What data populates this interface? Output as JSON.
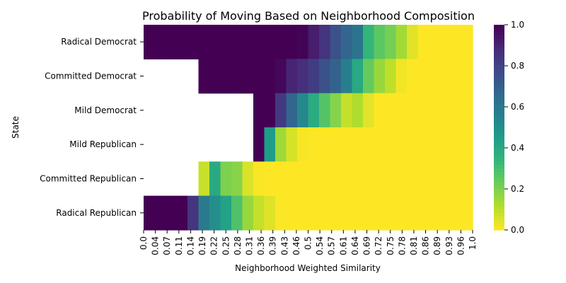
{
  "chart_data": {
    "type": "heatmap",
    "title": "Probability of Moving Based on Neighborhood Composition",
    "xlabel": "Neighborhood Weighted Similarity",
    "ylabel": "State",
    "rows": [
      "Radical Democrat",
      "Committed Democrat",
      "Mild Democrat",
      "Mild Republican",
      "Committed Republican",
      "Radical Republican"
    ],
    "x_ticks": [
      "0.0",
      "0.04",
      "0.07",
      "0.11",
      "0.14",
      "0.19",
      "0.22",
      "0.25",
      "0.28",
      "0.31",
      "0.36",
      "0.39",
      "0.43",
      "0.46",
      "0.5",
      "0.54",
      "0.57",
      "0.61",
      "0.64",
      "0.69",
      "0.72",
      "0.75",
      "0.78",
      "0.81",
      "0.86",
      "0.89",
      "0.93",
      "0.96",
      "1.0"
    ],
    "x_range": [
      0.0,
      1.0
    ],
    "colorbar": {
      "colormap": "viridis",
      "range": [
        0.0,
        1.0
      ],
      "ticks": [
        "0.0",
        "0.2",
        "0.4",
        "0.6",
        "0.8",
        "1.0"
      ],
      "stops": [
        "#fde725",
        "#b5de2b",
        "#6ece58",
        "#35b779",
        "#1f9e89",
        "#26828e",
        "#31688e",
        "#3e4989",
        "#482878",
        "#440154"
      ]
    },
    "series": [
      {
        "name": "Radical Democrat",
        "valid_from": 0.0,
        "profile": [
          [
            0.0,
            0.85
          ],
          [
            0.01,
            1.0
          ],
          [
            0.48,
            1.0
          ],
          [
            0.55,
            0.85
          ],
          [
            0.6,
            0.7
          ],
          [
            0.66,
            0.6
          ],
          [
            0.68,
            0.35
          ],
          [
            0.72,
            0.25
          ],
          [
            0.76,
            0.2
          ],
          [
            0.8,
            0.1
          ],
          [
            0.83,
            0.0
          ],
          [
            1.0,
            0.0
          ]
        ]
      },
      {
        "name": "Committed Democrat",
        "valid_from": 0.17,
        "profile": [
          [
            0.17,
            1.0
          ],
          [
            0.41,
            1.0
          ],
          [
            0.45,
            0.9
          ],
          [
            0.5,
            0.85
          ],
          [
            0.55,
            0.75
          ],
          [
            0.6,
            0.65
          ],
          [
            0.65,
            0.4
          ],
          [
            0.68,
            0.25
          ],
          [
            0.72,
            0.15
          ],
          [
            0.76,
            0.08
          ],
          [
            0.79,
            0.0
          ],
          [
            1.0,
            0.0
          ]
        ]
      },
      {
        "name": "Mild Democrat",
        "valid_from": 0.34,
        "profile": [
          [
            0.34,
            1.0
          ],
          [
            0.41,
            1.0
          ],
          [
            0.42,
            0.75
          ],
          [
            0.46,
            0.65
          ],
          [
            0.5,
            0.45
          ],
          [
            0.54,
            0.3
          ],
          [
            0.58,
            0.2
          ],
          [
            0.61,
            0.08
          ],
          [
            0.65,
            0.12
          ],
          [
            0.68,
            0.05
          ],
          [
            0.7,
            0.0
          ],
          [
            1.0,
            0.0
          ]
        ]
      },
      {
        "name": "Mild Republican",
        "valid_from": 0.34,
        "profile": [
          [
            0.34,
            0.6
          ],
          [
            0.35,
            1.0
          ],
          [
            0.37,
            0.0
          ],
          [
            0.38,
            0.5
          ],
          [
            0.4,
            0.2
          ],
          [
            0.43,
            0.1
          ],
          [
            0.47,
            0.02
          ],
          [
            0.5,
            0.0
          ],
          [
            1.0,
            0.0
          ]
        ]
      },
      {
        "name": "Committed Republican",
        "valid_from": 0.17,
        "profile": [
          [
            0.17,
            0.85
          ],
          [
            0.18,
            0.1
          ],
          [
            0.2,
            0.0
          ],
          [
            0.21,
            0.45
          ],
          [
            0.24,
            0.2
          ],
          [
            0.28,
            0.2
          ],
          [
            0.3,
            0.1
          ],
          [
            0.33,
            0.02
          ],
          [
            0.36,
            0.0
          ],
          [
            1.0,
            0.0
          ]
        ]
      },
      {
        "name": "Radical Republican",
        "valid_from": 0.0,
        "profile": [
          [
            0.0,
            1.0
          ],
          [
            0.12,
            1.0
          ],
          [
            0.15,
            0.85
          ],
          [
            0.18,
            0.6
          ],
          [
            0.22,
            0.5
          ],
          [
            0.26,
            0.4
          ],
          [
            0.3,
            0.2
          ],
          [
            0.34,
            0.1
          ],
          [
            0.38,
            0.05
          ],
          [
            0.42,
            0.0
          ],
          [
            1.0,
            0.0
          ]
        ]
      }
    ]
  }
}
